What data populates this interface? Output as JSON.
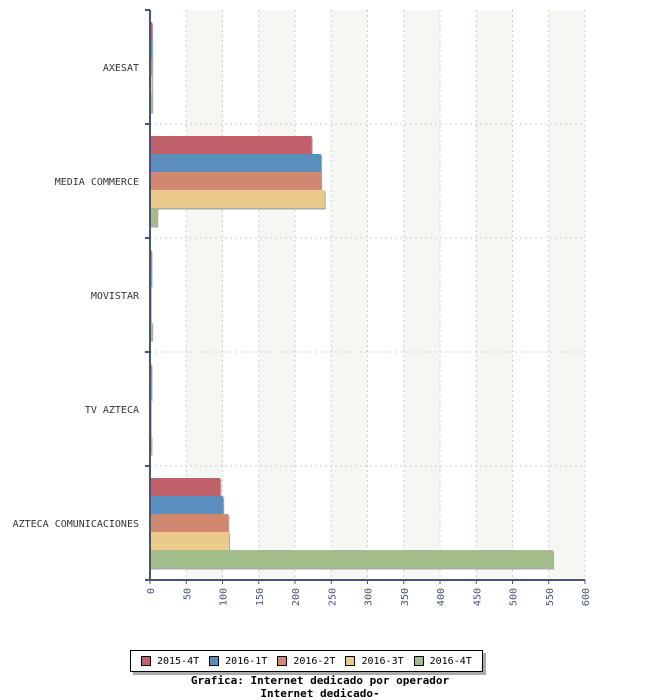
{
  "chart_data": {
    "type": "bar",
    "orientation": "horizontal",
    "title": "Grafica: Internet dedicado por operador",
    "subtitle": "Internet dedicado-",
    "categories": [
      "AXESAT",
      "MEDIA COMMERCE",
      "MOVISTAR",
      "TV AZTECA",
      "AZTECA COMUNICACIONES"
    ],
    "series": [
      {
        "name": "2015-4T",
        "color": "#c0606a",
        "values": [
          3,
          223,
          2,
          2,
          97
        ]
      },
      {
        "name": "2016-1T",
        "color": "#5b8dbf",
        "values": [
          3,
          236,
          2,
          2,
          101
        ]
      },
      {
        "name": "2016-2T",
        "color": "#d08870",
        "values": [
          3,
          236,
          1,
          1,
          108
        ]
      },
      {
        "name": "2016-3T",
        "color": "#ebcb8b",
        "values": [
          3,
          241,
          1,
          1,
          109
        ]
      },
      {
        "name": "2016-4T",
        "color": "#a3bd8a",
        "values": [
          3,
          10,
          3,
          2,
          556
        ]
      }
    ],
    "xlim": [
      0,
      600
    ],
    "xticks": [
      "0",
      "50",
      "100",
      "150",
      "200",
      "250",
      "300",
      "350",
      "400",
      "450",
      "500",
      "550",
      "600"
    ],
    "grid": true,
    "legend_position": "bottom"
  }
}
